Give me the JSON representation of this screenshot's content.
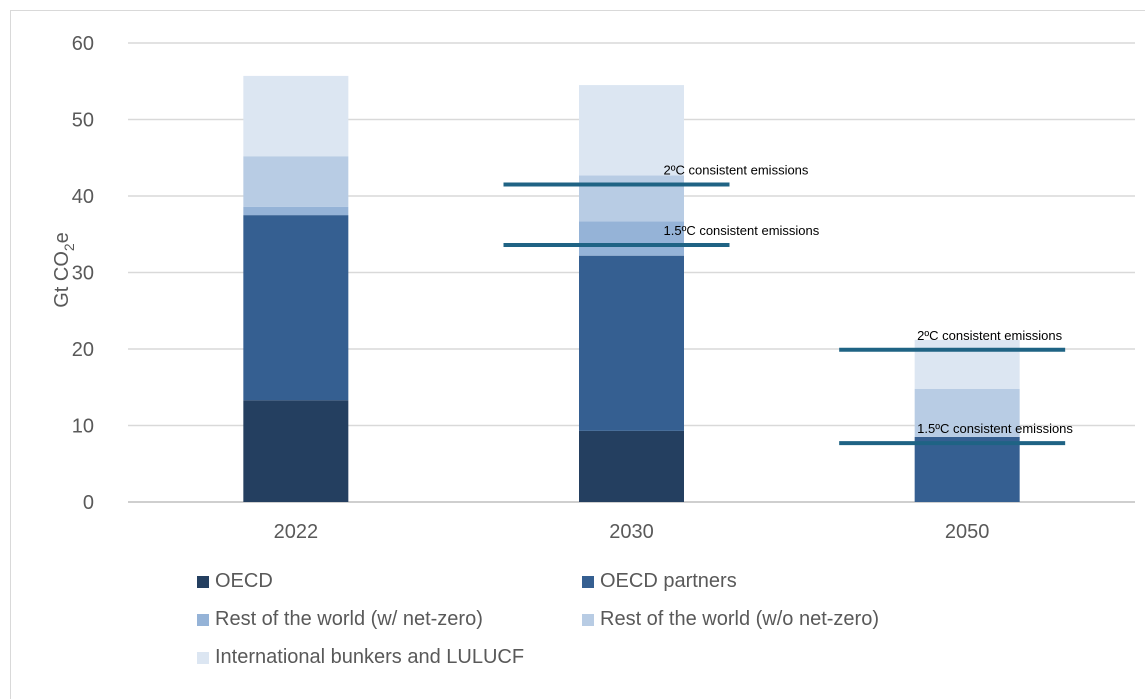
{
  "chart_data": {
    "type": "bar",
    "stacked": true,
    "ylabel": "Gt CO2e",
    "ylim": [
      0,
      60
    ],
    "yticks": [
      0,
      10,
      20,
      30,
      40,
      50,
      60
    ],
    "grid": true,
    "legend_position": "bottom",
    "categories": [
      "2022",
      "2030",
      "2050"
    ],
    "series": [
      {
        "name": "OECD",
        "color": "#243f60",
        "values": [
          13.3,
          9.3,
          0
        ]
      },
      {
        "name": "OECD partners",
        "color": "#355f91",
        "values": [
          24.2,
          22.9,
          8.5
        ]
      },
      {
        "name": "Rest of the world (w/ net-zero)",
        "color": "#95b3d7",
        "values": [
          1.1,
          4.5,
          0
        ]
      },
      {
        "name": "Rest of the world (w/o net-zero)",
        "color": "#b8cce4",
        "values": [
          6.6,
          6.0,
          6.3
        ]
      },
      {
        "name": "International bunkers and LULUCF",
        "color": "#dce6f2",
        "values": [
          10.5,
          11.8,
          6.4
        ]
      }
    ],
    "reference_lines": [
      {
        "category": "2030",
        "value": 41.5,
        "label": "2ºC consistent emissions"
      },
      {
        "category": "2030",
        "value": 33.6,
        "label": "1.5ºC consistent emissions"
      },
      {
        "category": "2050",
        "value": 19.9,
        "label": "2ºC consistent emissions"
      },
      {
        "category": "2050",
        "value": 7.7,
        "label": "1.5ºC consistent emissions"
      }
    ],
    "reference_line_color": "#1f6384"
  }
}
